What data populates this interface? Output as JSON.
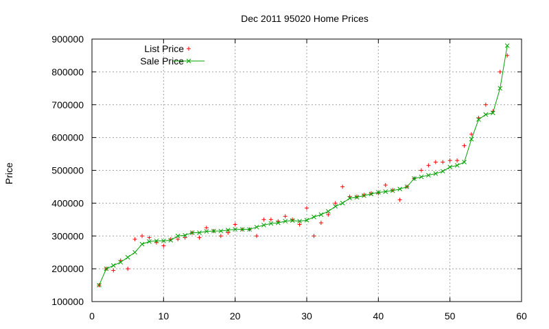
{
  "chart_data": {
    "type": "line",
    "title": "Dec 2011 95020 Home Prices",
    "xlabel": "",
    "ylabel": "Price",
    "xlim": [
      0,
      60
    ],
    "ylim": [
      100000,
      900000
    ],
    "xticks": [
      "0",
      "10",
      "20",
      "30",
      "40",
      "50",
      "60"
    ],
    "yticks": [
      "100000",
      "200000",
      "300000",
      "400000",
      "500000",
      "600000",
      "700000",
      "800000",
      "900000"
    ],
    "grid": true,
    "legend_position": "top-left",
    "series": [
      {
        "name": "List Price",
        "style": "points",
        "marker": "+",
        "color": "#ff0000",
        "x": [
          1,
          2,
          3,
          4,
          5,
          6,
          7,
          8,
          9,
          10,
          11,
          12,
          13,
          14,
          15,
          16,
          17,
          18,
          19,
          20,
          21,
          22,
          23,
          24,
          25,
          26,
          27,
          28,
          29,
          30,
          31,
          32,
          33,
          34,
          35,
          36,
          37,
          38,
          39,
          40,
          41,
          42,
          43,
          44,
          45,
          46,
          47,
          48,
          49,
          50,
          51,
          52,
          53,
          54,
          55,
          56,
          57,
          58
        ],
        "y": [
          150000,
          200000,
          195000,
          225000,
          200000,
          290000,
          300000,
          295000,
          280000,
          270000,
          290000,
          290000,
          295000,
          310000,
          295000,
          325000,
          315000,
          300000,
          310000,
          335000,
          320000,
          320000,
          300000,
          350000,
          350000,
          345000,
          360000,
          350000,
          335000,
          385000,
          300000,
          340000,
          365000,
          400000,
          450000,
          420000,
          420000,
          425000,
          430000,
          430000,
          455000,
          440000,
          410000,
          450000,
          475000,
          500000,
          515000,
          525000,
          525000,
          530000,
          530000,
          575000,
          610000,
          660000,
          700000,
          680000,
          800000,
          850000
        ]
      },
      {
        "name": "Sale Price",
        "style": "linespoints",
        "marker": "x",
        "color": "#00a000",
        "x": [
          1,
          2,
          3,
          4,
          5,
          6,
          7,
          8,
          9,
          10,
          11,
          12,
          13,
          14,
          15,
          16,
          17,
          18,
          19,
          20,
          21,
          22,
          23,
          24,
          25,
          26,
          27,
          28,
          29,
          30,
          31,
          32,
          33,
          34,
          35,
          36,
          37,
          38,
          39,
          40,
          41,
          42,
          43,
          44,
          45,
          46,
          47,
          48,
          49,
          50,
          51,
          52,
          53,
          54,
          55,
          56,
          57,
          58
        ],
        "y": [
          150000,
          200000,
          210000,
          220000,
          235000,
          250000,
          275000,
          283000,
          285000,
          285000,
          287000,
          300000,
          302000,
          310000,
          310000,
          314000,
          315000,
          315000,
          318000,
          320000,
          320000,
          320000,
          327000,
          333000,
          338000,
          340000,
          345000,
          347000,
          345000,
          348000,
          358000,
          365000,
          375000,
          390000,
          400000,
          415000,
          418000,
          423000,
          428000,
          433000,
          435000,
          438000,
          443000,
          450000,
          475000,
          480000,
          485000,
          490000,
          497000,
          510000,
          515000,
          525000,
          595000,
          655000,
          670000,
          675000,
          750000,
          880000
        ]
      }
    ]
  }
}
